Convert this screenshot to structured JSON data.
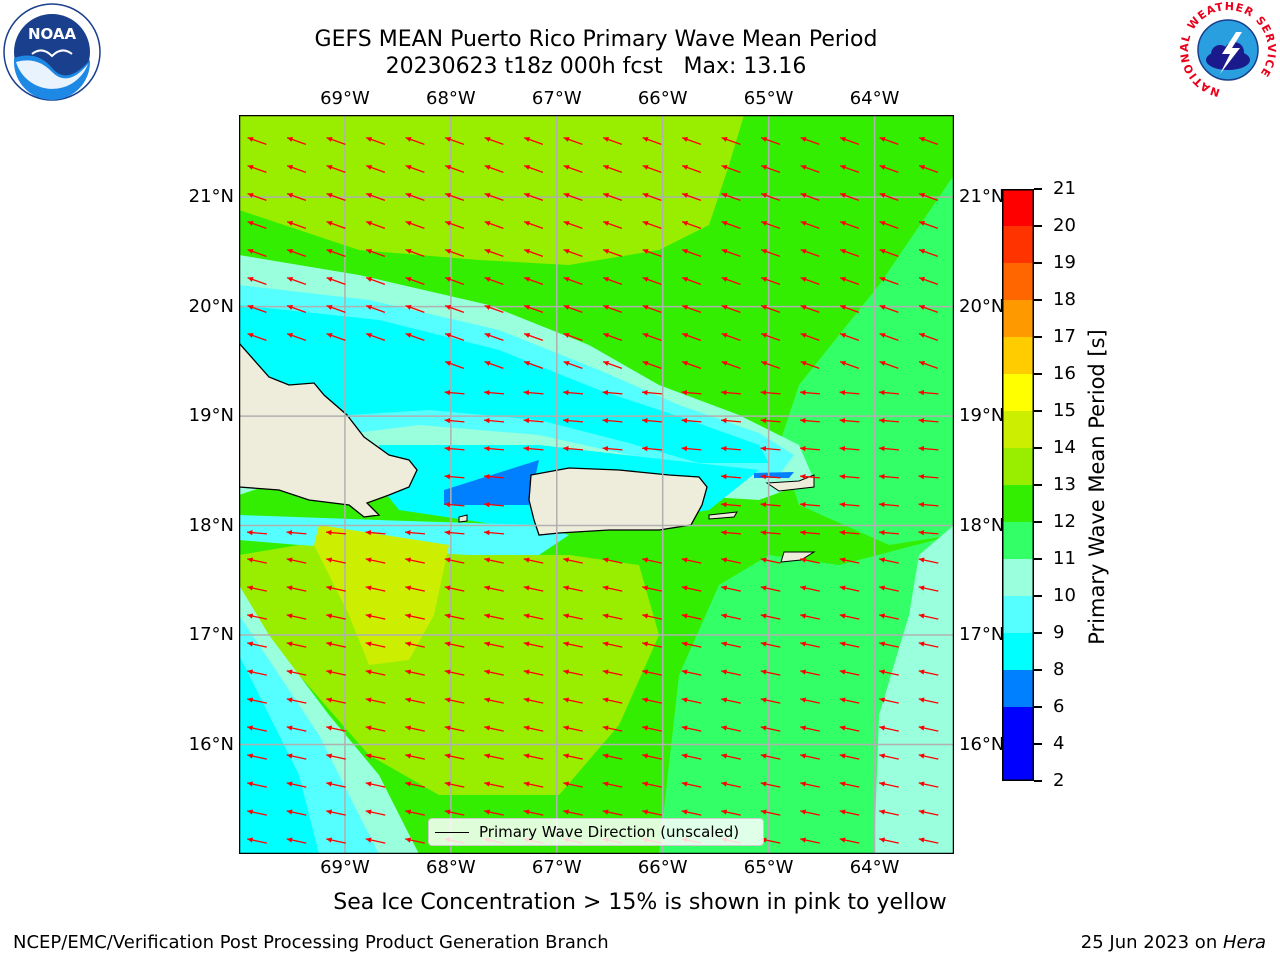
{
  "title": {
    "line1": "GEFS MEAN Puerto Rico Primary Wave Mean Period",
    "line2": "20230623 t18z 000h fcst   Max: 13.16"
  },
  "logos": {
    "left": {
      "name": "NOAA",
      "ring_text": "NATIONAL OCEANIC AND ATMOSPHERIC ADMINISTRATION · U.S. DEPARTMENT OF COMMERCE"
    },
    "right": {
      "name": "NATIONAL WEATHER SERVICE"
    }
  },
  "map": {
    "lon_labels": [
      "69°W",
      "68°W",
      "67°W",
      "66°W",
      "65°W",
      "64°W"
    ],
    "lat_labels": [
      "21°N",
      "20°N",
      "19°N",
      "18°N",
      "17°N",
      "16°N"
    ],
    "lon_values": [
      -69,
      -68,
      -67,
      -66,
      -65,
      -64
    ],
    "lat_values": [
      21,
      20,
      19,
      18,
      17,
      16
    ],
    "extent": {
      "lon": [
        -70,
        -63.25
      ],
      "lat": [
        15,
        21.75
      ]
    },
    "arrow_color": "#ff0000",
    "land_color": "#eeeddc",
    "legend_label": "Primary Wave Direction (unscaled)"
  },
  "colorbar": {
    "title": "Primary Wave Mean Period [s]",
    "labels": [
      "21",
      "20",
      "19",
      "18",
      "17",
      "16",
      "15",
      "14",
      "13",
      "12",
      "11",
      "10",
      "9",
      "8",
      "6",
      "4",
      "2"
    ],
    "colors": [
      "#ff0000",
      "#ff3300",
      "#ff6600",
      "#ff9900",
      "#ffcc00",
      "#ffff00",
      "#ccee00",
      "#99ee00",
      "#33ee00",
      "#33ff66",
      "#99ffdd",
      "#55ffff",
      "#00ffff",
      "#0080ff",
      "#0000ff"
    ]
  },
  "subtitle": "Sea Ice Concentration > 15% is shown in pink to yellow",
  "footer": {
    "left": "NCEP/EMC/Verification Post Processing Product Generation Branch",
    "right_prefix": "25 Jun 2023 on ",
    "right_host": "Hera"
  }
}
